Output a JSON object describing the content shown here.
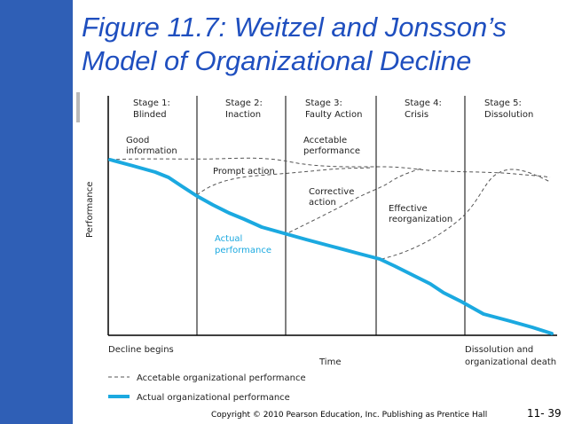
{
  "slide": {
    "title_line1": "Figure 11.7: Weitzel and Jonsson’s",
    "title_line2": "Model of Organizational Decline",
    "footer": "Copyright © 2010 Pearson Education, Inc. Publishing as Prentice Hall",
    "slide_number": "11- 39"
  },
  "colors": {
    "left_bar": "#2f5fb6",
    "title": "#1f4fbf",
    "actual_line": "#1ba9e0",
    "acceptable_line": "#555555"
  },
  "diagram": {
    "stages": [
      {
        "line1": "Stage 1:",
        "line2": "Blinded"
      },
      {
        "line1": "Stage 2:",
        "line2": "Inaction"
      },
      {
        "line1": "Stage 3:",
        "line2": "Faulty Action"
      },
      {
        "line1": "Stage 4:",
        "line2": "Crisis"
      },
      {
        "line1": "Stage 5:",
        "line2": "Dissolution"
      }
    ],
    "labels": {
      "good_information_1": "Good",
      "good_information_2": "information",
      "acceptable_performance_1": "Accetable",
      "acceptable_performance_2": "performance",
      "prompt_action": "Prompt action",
      "corrective_action_1": "Corrective",
      "corrective_action_2": "action",
      "effective_reorg_1": "Effective",
      "effective_reorg_2": "reorganization",
      "actual_performance_1": "Actual",
      "actual_performance_2": "performance"
    },
    "axis": {
      "y_label": "Performance",
      "x_label": "Time",
      "start_label": "Decline begins",
      "end_label_1": "Dissolution and",
      "end_label_2": "organizational death"
    },
    "legend": {
      "acceptable": "Accetable organizational performance",
      "actual": "Actual organizational performance"
    }
  }
}
